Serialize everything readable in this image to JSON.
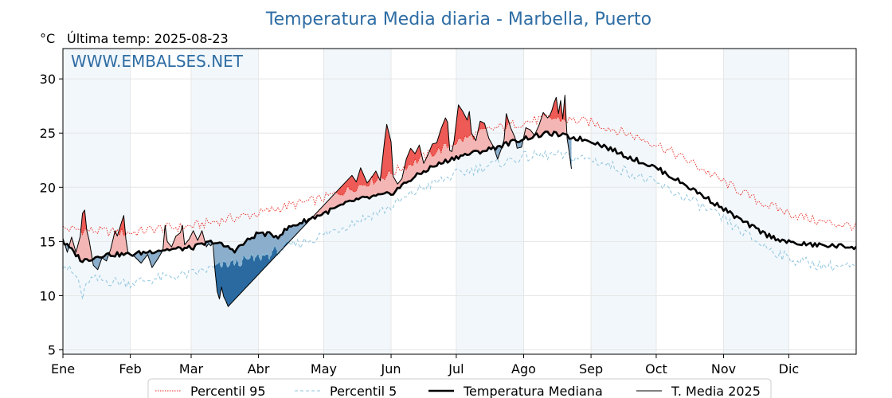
{
  "chart_data": {
    "type": "line",
    "title": "Temperatura Media diaria - Marbella, Puerto",
    "unit_label": "°C",
    "subtitle": "Última temp: 2025-08-23",
    "watermark": "WWW.EMBALSES.NET",
    "ylim": [
      4.6,
      32.8
    ],
    "yticks": [
      5,
      10,
      15,
      20,
      25,
      30
    ],
    "xlim": [
      1,
      366
    ],
    "months": [
      {
        "label": "Ene",
        "day": 1
      },
      {
        "label": "Feb",
        "day": 32
      },
      {
        "label": "Mar",
        "day": 60
      },
      {
        "label": "Abr",
        "day": 91
      },
      {
        "label": "May",
        "day": 121
      },
      {
        "label": "Jun",
        "day": 152
      },
      {
        "label": "Jul",
        "day": 182
      },
      {
        "label": "Ago",
        "day": 213
      },
      {
        "label": "Sep",
        "day": 244
      },
      {
        "label": "Oct",
        "day": 274
      },
      {
        "label": "Nov",
        "day": 305
      },
      {
        "label": "Dic",
        "day": 335
      }
    ],
    "grid": true,
    "legend_position": "bottom",
    "colors": {
      "p95": "#e8281e",
      "p5": "#8fc5de",
      "median": "#000000",
      "current": "#000000",
      "above_fill": "#f4b6b4",
      "above_strong_fill": "#ee5a55",
      "below_fill": "#8aaecb",
      "below_strong_fill": "#2a6aa0",
      "month_band": "#f2f7fb",
      "title": "#2e6da4"
    },
    "series": [
      {
        "name": "Percentil 95",
        "key": "p95",
        "style": "dotted",
        "points": [
          [
            1,
            16.2
          ],
          [
            15,
            16.0
          ],
          [
            32,
            15.8
          ],
          [
            45,
            16.2
          ],
          [
            60,
            16.4
          ],
          [
            75,
            17.0
          ],
          [
            91,
            17.6
          ],
          [
            105,
            18.3
          ],
          [
            121,
            19.0
          ],
          [
            135,
            20.0
          ],
          [
            152,
            21.3
          ],
          [
            165,
            22.6
          ],
          [
            182,
            24.2
          ],
          [
            197,
            25.3
          ],
          [
            213,
            26.0
          ],
          [
            225,
            26.4
          ],
          [
            244,
            26.0
          ],
          [
            260,
            25.0
          ],
          [
            274,
            24.0
          ],
          [
            290,
            22.3
          ],
          [
            305,
            20.5
          ],
          [
            320,
            18.8
          ],
          [
            335,
            17.6
          ],
          [
            350,
            16.8
          ],
          [
            366,
            16.4
          ]
        ]
      },
      {
        "name": "Percentil 5",
        "key": "p5",
        "style": "dashed",
        "points": [
          [
            1,
            13.0
          ],
          [
            8,
            11.5
          ],
          [
            10,
            9.8
          ],
          [
            13,
            11.5
          ],
          [
            32,
            11.2
          ],
          [
            45,
            11.6
          ],
          [
            60,
            12.0
          ],
          [
            75,
            12.8
          ],
          [
            91,
            13.5
          ],
          [
            105,
            14.5
          ],
          [
            121,
            15.6
          ],
          [
            135,
            16.8
          ],
          [
            152,
            18.2
          ],
          [
            165,
            19.8
          ],
          [
            182,
            21.2
          ],
          [
            197,
            22.0
          ],
          [
            213,
            22.8
          ],
          [
            225,
            23.0
          ],
          [
            244,
            22.6
          ],
          [
            260,
            21.5
          ],
          [
            274,
            20.3
          ],
          [
            290,
            18.8
          ],
          [
            305,
            17.0
          ],
          [
            320,
            15.0
          ],
          [
            335,
            13.4
          ],
          [
            350,
            12.8
          ],
          [
            366,
            12.6
          ]
        ]
      },
      {
        "name": "Temperatura Mediana",
        "key": "median",
        "style": "solid-thick",
        "points": [
          [
            1,
            15.0
          ],
          [
            10,
            13.2
          ],
          [
            20,
            13.8
          ],
          [
            32,
            13.8
          ],
          [
            45,
            14.2
          ],
          [
            60,
            14.4
          ],
          [
            70,
            15.0
          ],
          [
            80,
            14.2
          ],
          [
            91,
            15.8
          ],
          [
            100,
            15.5
          ],
          [
            105,
            16.3
          ],
          [
            121,
            17.6
          ],
          [
            135,
            18.8
          ],
          [
            152,
            19.4
          ],
          [
            160,
            20.6
          ],
          [
            170,
            21.8
          ],
          [
            182,
            22.8
          ],
          [
            197,
            23.5
          ],
          [
            205,
            24.0
          ],
          [
            213,
            24.5
          ],
          [
            225,
            25.0
          ],
          [
            235,
            24.6
          ],
          [
            244,
            24.3
          ],
          [
            250,
            23.8
          ],
          [
            260,
            22.9
          ],
          [
            274,
            21.8
          ],
          [
            285,
            20.5
          ],
          [
            295,
            19.3
          ],
          [
            305,
            18.0
          ],
          [
            315,
            16.7
          ],
          [
            325,
            15.6
          ],
          [
            335,
            14.9
          ],
          [
            345,
            14.7
          ],
          [
            355,
            14.6
          ],
          [
            366,
            14.5
          ]
        ]
      },
      {
        "name": "T. Media 2025",
        "key": "current",
        "style": "solid-thin",
        "points": [
          [
            1,
            15.3
          ],
          [
            3,
            14.0
          ],
          [
            5,
            15.4
          ],
          [
            7,
            14.0
          ],
          [
            9,
            15.5
          ],
          [
            10,
            17.6
          ],
          [
            11,
            17.9
          ],
          [
            12,
            16.0
          ],
          [
            13,
            15.2
          ],
          [
            14,
            14.0
          ],
          [
            15,
            12.8
          ],
          [
            17,
            12.4
          ],
          [
            19,
            13.5
          ],
          [
            21,
            13.2
          ],
          [
            23,
            14.3
          ],
          [
            25,
            16.0
          ],
          [
            26,
            15.5
          ],
          [
            28,
            16.8
          ],
          [
            29,
            17.4
          ],
          [
            30,
            15.2
          ],
          [
            31,
            13.9
          ],
          [
            34,
            13.6
          ],
          [
            37,
            13.0
          ],
          [
            40,
            13.8
          ],
          [
            42,
            12.6
          ],
          [
            45,
            13.5
          ],
          [
            47,
            14.2
          ],
          [
            48,
            16.5
          ],
          [
            49,
            15.0
          ],
          [
            51,
            14.5
          ],
          [
            53,
            15.5
          ],
          [
            55,
            15.8
          ],
          [
            56,
            16.5
          ],
          [
            57,
            14.7
          ],
          [
            59,
            15.2
          ],
          [
            61,
            16.0
          ],
          [
            63,
            15.1
          ],
          [
            65,
            16.0
          ],
          [
            67,
            14.5
          ],
          [
            68,
            14.8
          ],
          [
            69,
            14.6
          ],
          [
            70,
            14.9
          ],
          [
            71,
            12.3
          ],
          [
            72,
            10.4
          ],
          [
            73,
            9.7
          ],
          [
            74,
            10.8
          ],
          [
            75,
            9.9
          ],
          [
            76,
            9.5
          ],
          [
            77,
            9.0
          ],
          [
            134,
            21.1
          ],
          [
            136,
            20.5
          ],
          [
            138,
            21.8
          ],
          [
            141,
            20.4
          ],
          [
            143,
            20.9
          ],
          [
            145,
            21.5
          ],
          [
            147,
            20.6
          ],
          [
            149,
            24.3
          ],
          [
            150,
            25.8
          ],
          [
            152,
            24.2
          ],
          [
            153,
            21.0
          ],
          [
            155,
            20.3
          ],
          [
            157,
            20.8
          ],
          [
            159,
            22.6
          ],
          [
            161,
            23.6
          ],
          [
            163,
            23.1
          ],
          [
            165,
            23.9
          ],
          [
            167,
            22.2
          ],
          [
            169,
            23.0
          ],
          [
            171,
            24.0
          ],
          [
            173,
            24.1
          ],
          [
            175,
            25.4
          ],
          [
            177,
            26.4
          ],
          [
            178,
            26.0
          ],
          [
            179,
            23.4
          ],
          [
            180,
            23.3
          ],
          [
            181,
            24.3
          ],
          [
            183,
            27.6
          ],
          [
            185,
            27.0
          ],
          [
            187,
            26.2
          ],
          [
            188,
            27.0
          ],
          [
            189,
            25.0
          ],
          [
            191,
            24.3
          ],
          [
            193,
            26.1
          ],
          [
            195,
            25.9
          ],
          [
            197,
            24.5
          ],
          [
            199,
            23.8
          ],
          [
            201,
            22.6
          ],
          [
            203,
            23.7
          ],
          [
            204,
            24.4
          ],
          [
            205,
            26.8
          ],
          [
            207,
            25.5
          ],
          [
            209,
            24.6
          ],
          [
            210,
            23.6
          ],
          [
            212,
            23.7
          ],
          [
            214,
            25.5
          ],
          [
            216,
            25.3
          ],
          [
            218,
            24.8
          ],
          [
            220,
            25.7
          ],
          [
            222,
            26.9
          ],
          [
            224,
            26.4
          ],
          [
            225,
            26.6
          ],
          [
            226,
            27.1
          ],
          [
            227,
            27.8
          ],
          [
            228,
            28.3
          ],
          [
            229,
            26.8
          ],
          [
            230,
            28.0
          ],
          [
            231,
            26.3
          ],
          [
            232,
            28.5
          ],
          [
            233,
            24.5
          ],
          [
            234,
            23.2
          ],
          [
            235,
            21.7
          ]
        ]
      }
    ],
    "legend": [
      {
        "label": "Percentil 95",
        "key": "p95"
      },
      {
        "label": "Percentil 5",
        "key": "p5"
      },
      {
        "label": "Temperatura Mediana",
        "key": "median"
      },
      {
        "label": "T. Media 2025",
        "key": "current"
      }
    ]
  }
}
